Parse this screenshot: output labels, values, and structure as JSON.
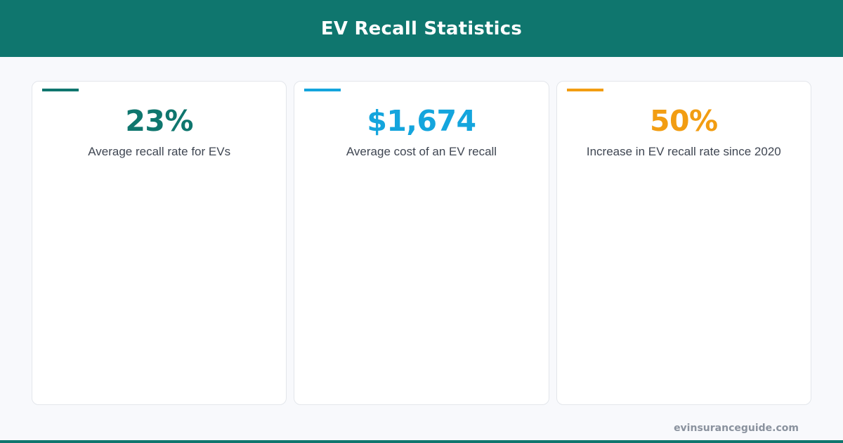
{
  "header": {
    "title": "EV Recall Statistics"
  },
  "stats": [
    {
      "value": "23%",
      "label": "Average recall rate for EVs",
      "color": "#0f766e"
    },
    {
      "value": "$1,674",
      "label": "Average cost of an EV recall",
      "color": "#14a5dd"
    },
    {
      "value": "50%",
      "label": "Increase in EV recall rate since 2020",
      "color": "#f29d12"
    }
  ],
  "footer": {
    "site": "evinsuranceguide.com"
  },
  "colors": {
    "brand": "#0f766e",
    "background": "#f8f9fc",
    "card_border": "#e3e6eb",
    "footer_text": "#8a929e"
  }
}
